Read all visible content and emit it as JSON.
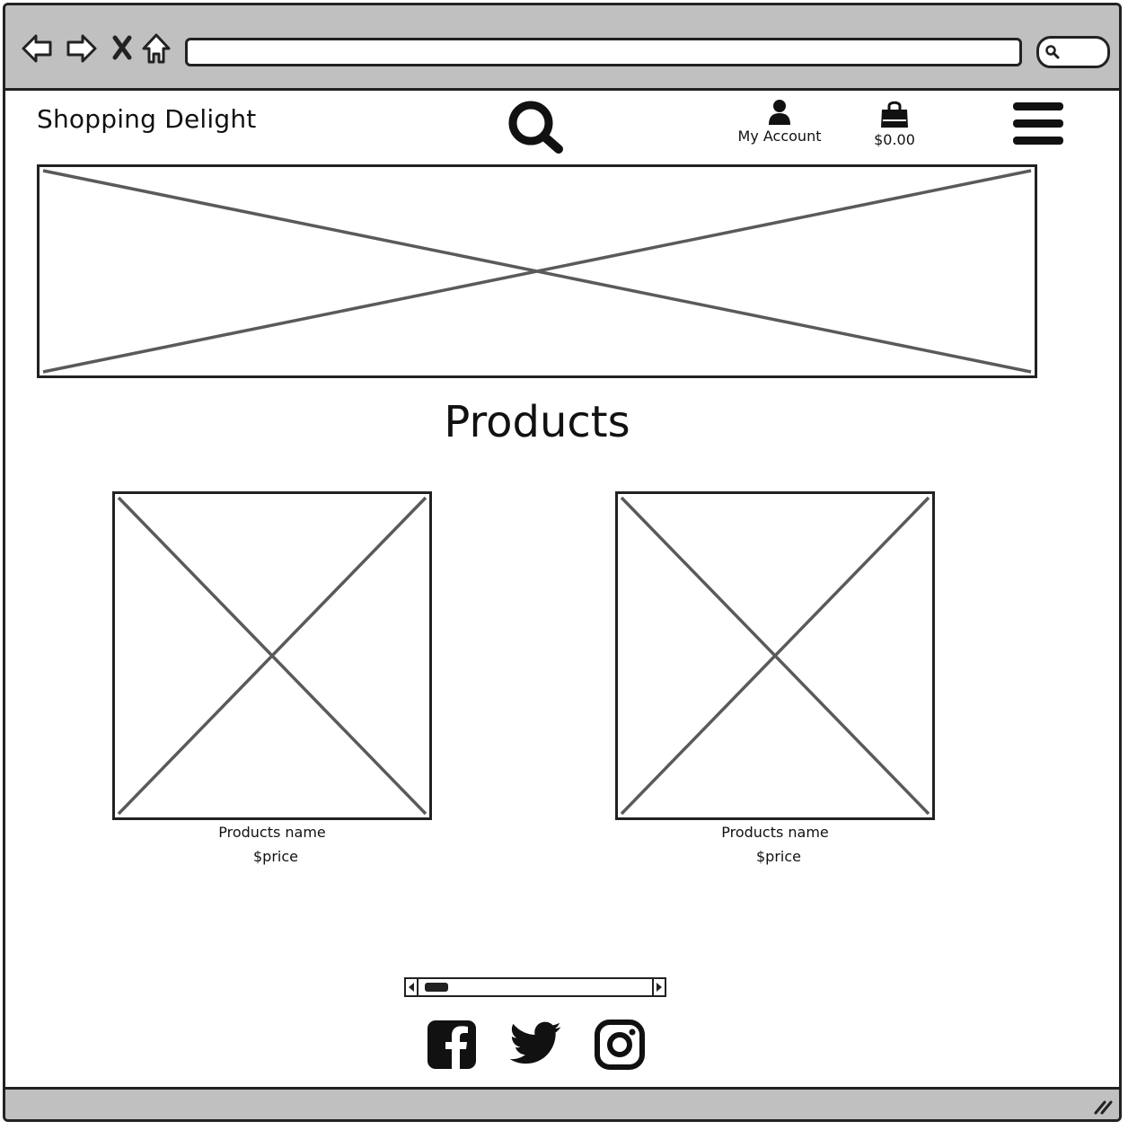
{
  "browser": {
    "icons": [
      "back-arrow-icon",
      "forward-arrow-icon",
      "close-icon",
      "home-icon",
      "search-icon"
    ],
    "address_bar_value": ""
  },
  "header": {
    "brand": "Shopping Delight",
    "account_label": "My Account",
    "cart_total": "$0.00",
    "icons": [
      "search-icon",
      "user-icon",
      "shopping-bag-icon",
      "hamburger-menu-icon"
    ]
  },
  "main": {
    "hero_image": "image-placeholder",
    "section_title": "Products",
    "products": [
      {
        "name": "Products name",
        "price": "$price"
      },
      {
        "name": "Products name",
        "price": "$price"
      }
    ]
  },
  "footer": {
    "scroll_position": 0.03,
    "social_icons": [
      "facebook-icon",
      "twitter-icon",
      "instagram-icon"
    ]
  },
  "colors": {
    "chrome": "#c0c0c0",
    "stroke": "#222222",
    "placeholder_line": "#5a5a5a"
  }
}
